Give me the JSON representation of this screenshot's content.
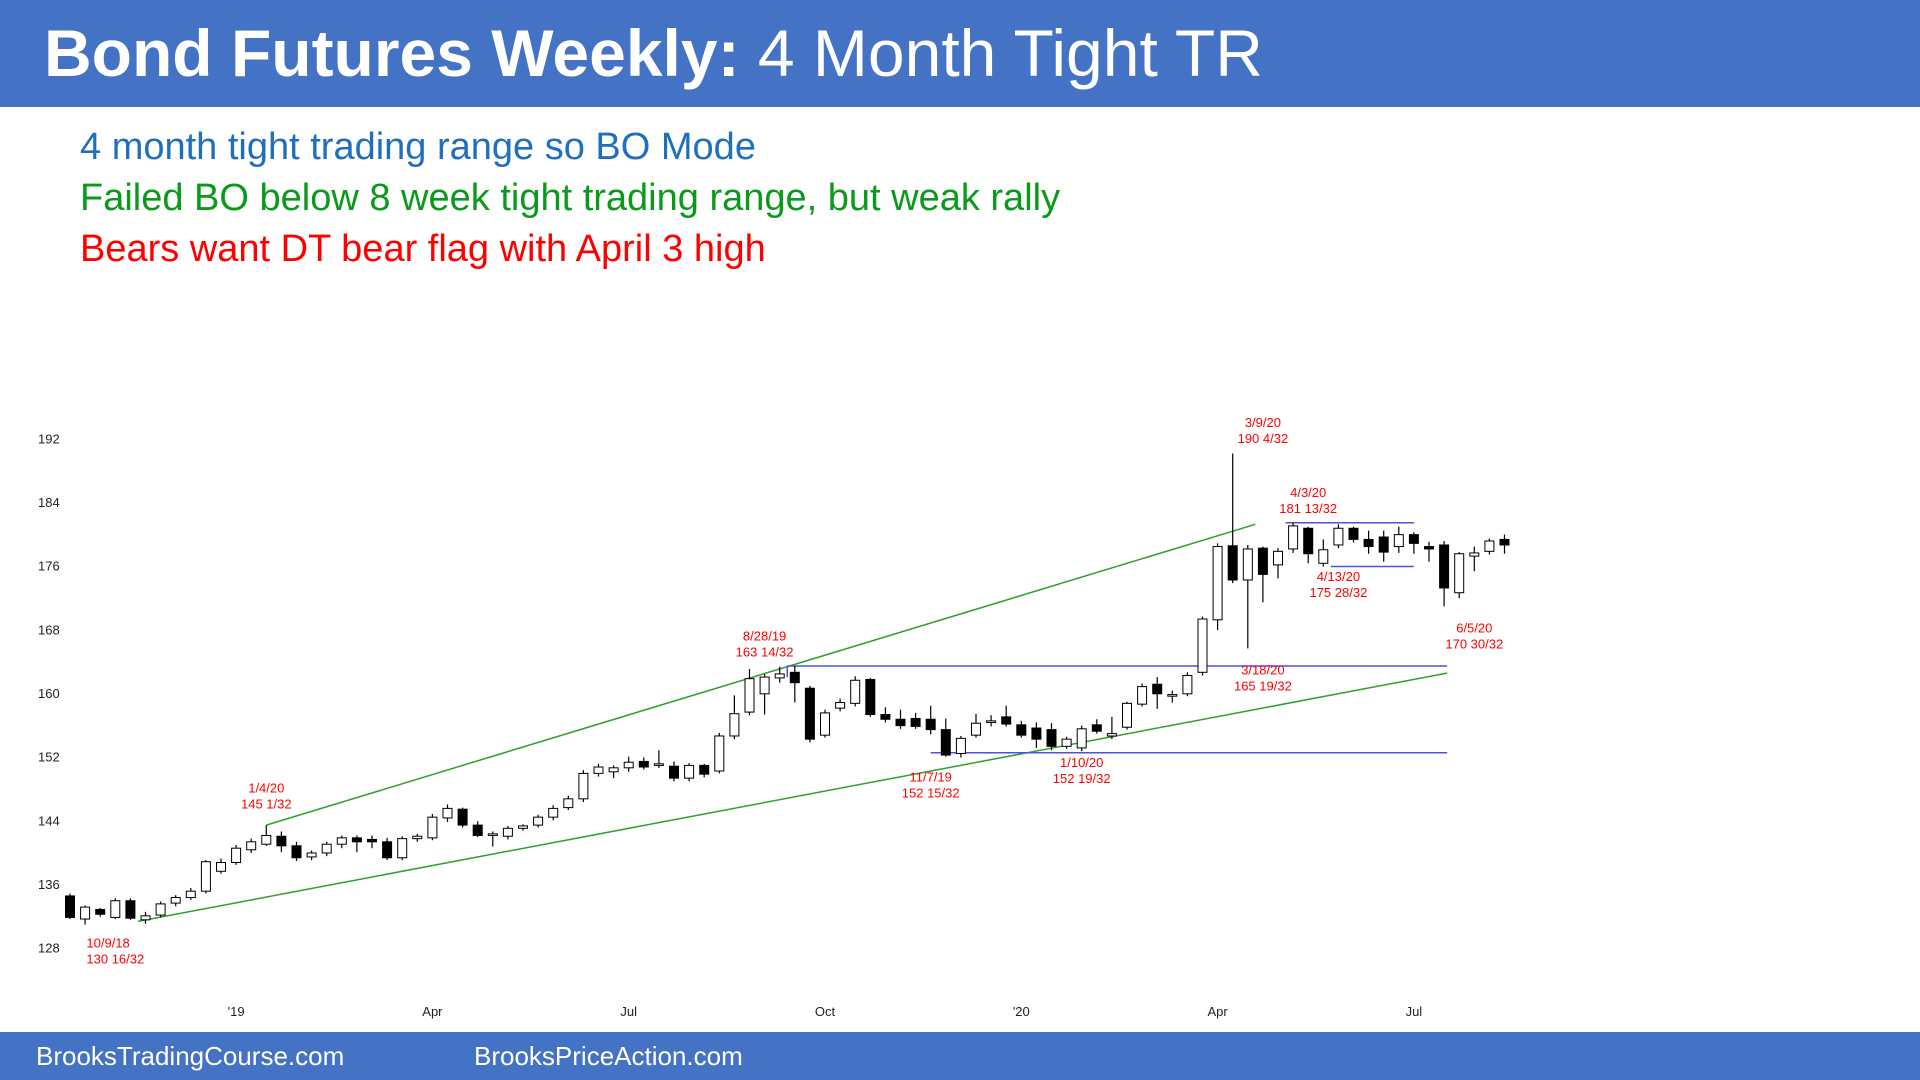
{
  "header": {
    "title_bold": "Bond Futures Weekly:",
    "title_rest": " 4 Month Tight TR",
    "bg_color": "#4472c4"
  },
  "bullets": [
    {
      "text": "4 month tight trading range so BO Mode",
      "color": "#1f6fbf"
    },
    {
      "text": "Failed BO below 8 week tight trading range, but weak rally",
      "color": "#0a9a1a"
    },
    {
      "text": "Bears want DT bear flag with April 3 high",
      "color": "#ff0000"
    }
  ],
  "footer": {
    "left": "BrooksTradingCourse.com",
    "right": "BrooksPriceAction.com"
  },
  "chart_data": {
    "type": "candlestick",
    "title": "",
    "x_axis_ticks": [
      {
        "label": "'19",
        "bar": 11
      },
      {
        "label": "Apr",
        "bar": 24
      },
      {
        "label": "Jul",
        "bar": 37
      },
      {
        "label": "Oct",
        "bar": 50
      },
      {
        "label": "'20",
        "bar": 63
      },
      {
        "label": "Apr",
        "bar": 76
      },
      {
        "label": "Jul",
        "bar": 89
      }
    ],
    "y_axis": {
      "ticks": [
        128,
        136,
        144,
        152,
        160,
        168,
        176,
        184,
        192
      ],
      "ylim": [
        126,
        196
      ]
    },
    "colors": {
      "up": "#ffffff",
      "down": "#000000",
      "annotation": "#ff0000",
      "trendline": "#2ea02e",
      "range_line": "#5050e0"
    },
    "bars": [
      {
        "o": 134.5,
        "h": 134.8,
        "c": 131.8,
        "l": 131.6
      },
      {
        "o": 131.6,
        "h": 133.3,
        "c": 133.1,
        "l": 130.9
      },
      {
        "o": 132.8,
        "h": 133.0,
        "c": 132.2,
        "l": 131.9
      },
      {
        "o": 131.8,
        "h": 134.2,
        "c": 133.9,
        "l": 131.6
      },
      {
        "o": 133.9,
        "h": 134.2,
        "c": 131.7,
        "l": 131.5
      },
      {
        "o": 131.5,
        "h": 132.5,
        "c": 132.0,
        "l": 131.0
      },
      {
        "o": 132.1,
        "h": 133.8,
        "c": 133.5,
        "l": 131.8
      },
      {
        "o": 133.6,
        "h": 134.6,
        "c": 134.3,
        "l": 133.2
      },
      {
        "o": 134.3,
        "h": 135.5,
        "c": 135.1,
        "l": 134.0
      },
      {
        "o": 135.1,
        "h": 139.0,
        "c": 138.8,
        "l": 134.8
      },
      {
        "o": 137.6,
        "h": 139.2,
        "c": 138.7,
        "l": 137.3
      },
      {
        "o": 138.7,
        "h": 140.9,
        "c": 140.5,
        "l": 138.4
      },
      {
        "o": 140.3,
        "h": 141.7,
        "c": 141.3,
        "l": 139.9
      },
      {
        "o": 141.0,
        "h": 143.4,
        "c": 142.1,
        "l": 140.8
      },
      {
        "o": 142.0,
        "h": 142.6,
        "c": 140.8,
        "l": 140.0
      },
      {
        "o": 140.8,
        "h": 141.3,
        "c": 139.3,
        "l": 138.9
      },
      {
        "o": 139.4,
        "h": 140.2,
        "c": 139.9,
        "l": 139.0
      },
      {
        "o": 139.9,
        "h": 141.3,
        "c": 141.0,
        "l": 139.5
      },
      {
        "o": 141.0,
        "h": 142.1,
        "c": 141.8,
        "l": 140.5
      },
      {
        "o": 141.8,
        "h": 142.1,
        "c": 141.3,
        "l": 140.0
      },
      {
        "o": 141.6,
        "h": 142.1,
        "c": 141.3,
        "l": 140.5
      },
      {
        "o": 141.3,
        "h": 141.8,
        "c": 139.3,
        "l": 139.0
      },
      {
        "o": 139.3,
        "h": 142.0,
        "c": 141.7,
        "l": 139.0
      },
      {
        "o": 141.7,
        "h": 142.3,
        "c": 142.0,
        "l": 141.3
      },
      {
        "o": 141.8,
        "h": 144.8,
        "c": 144.4,
        "l": 141.5
      },
      {
        "o": 144.3,
        "h": 146.0,
        "c": 145.5,
        "l": 143.8
      },
      {
        "o": 145.4,
        "h": 145.6,
        "c": 143.4,
        "l": 143.1
      },
      {
        "o": 143.4,
        "h": 143.9,
        "c": 142.1,
        "l": 141.9
      },
      {
        "o": 142.1,
        "h": 142.6,
        "c": 142.3,
        "l": 140.7
      },
      {
        "o": 142.0,
        "h": 143.3,
        "c": 143.0,
        "l": 141.6
      },
      {
        "o": 143.0,
        "h": 143.5,
        "c": 143.3,
        "l": 142.7
      },
      {
        "o": 143.4,
        "h": 144.7,
        "c": 144.4,
        "l": 143.1
      },
      {
        "o": 144.4,
        "h": 145.9,
        "c": 145.5,
        "l": 144.0
      },
      {
        "o": 145.6,
        "h": 147.1,
        "c": 146.7,
        "l": 145.3
      },
      {
        "o": 146.7,
        "h": 150.3,
        "c": 149.9,
        "l": 146.3
      },
      {
        "o": 149.9,
        "h": 151.1,
        "c": 150.7,
        "l": 149.5
      },
      {
        "o": 150.1,
        "h": 150.9,
        "c": 150.6,
        "l": 149.3
      },
      {
        "o": 150.6,
        "h": 152.0,
        "c": 151.3,
        "l": 150.1
      },
      {
        "o": 151.4,
        "h": 151.9,
        "c": 150.7,
        "l": 150.4
      },
      {
        "o": 150.9,
        "h": 152.8,
        "c": 151.1,
        "l": 150.6
      },
      {
        "o": 150.8,
        "h": 151.4,
        "c": 149.3,
        "l": 148.9
      },
      {
        "o": 149.3,
        "h": 151.2,
        "c": 150.9,
        "l": 148.9
      },
      {
        "o": 150.9,
        "h": 151.1,
        "c": 149.8,
        "l": 149.4
      },
      {
        "o": 150.2,
        "h": 155.0,
        "c": 154.6,
        "l": 149.9
      },
      {
        "o": 154.6,
        "h": 159.7,
        "c": 157.4,
        "l": 154.2
      },
      {
        "o": 157.6,
        "h": 163.0,
        "c": 161.8,
        "l": 157.2
      },
      {
        "o": 159.9,
        "h": 162.4,
        "c": 162.0,
        "l": 157.3
      },
      {
        "o": 161.9,
        "h": 163.3,
        "c": 162.4,
        "l": 161.3
      },
      {
        "o": 162.6,
        "h": 163.4,
        "c": 161.3,
        "l": 158.8
      },
      {
        "o": 160.6,
        "h": 160.9,
        "c": 154.2,
        "l": 153.8
      },
      {
        "o": 154.7,
        "h": 157.9,
        "c": 157.5,
        "l": 154.4
      },
      {
        "o": 158.1,
        "h": 159.3,
        "c": 158.8,
        "l": 157.7
      },
      {
        "o": 158.7,
        "h": 162.1,
        "c": 161.6,
        "l": 158.3
      },
      {
        "o": 161.7,
        "h": 161.9,
        "c": 157.3,
        "l": 157.0
      },
      {
        "o": 157.3,
        "h": 158.2,
        "c": 156.7,
        "l": 156.3
      },
      {
        "o": 156.7,
        "h": 157.9,
        "c": 155.9,
        "l": 155.5
      },
      {
        "o": 156.8,
        "h": 157.5,
        "c": 155.8,
        "l": 155.5
      },
      {
        "o": 156.7,
        "h": 158.4,
        "c": 155.4,
        "l": 154.8
      },
      {
        "o": 155.4,
        "h": 156.8,
        "c": 152.2,
        "l": 152.0
      },
      {
        "o": 152.4,
        "h": 154.6,
        "c": 154.3,
        "l": 151.9
      },
      {
        "o": 154.7,
        "h": 157.4,
        "c": 156.2,
        "l": 154.4
      },
      {
        "o": 156.3,
        "h": 157.2,
        "c": 156.5,
        "l": 155.8
      },
      {
        "o": 157.0,
        "h": 158.4,
        "c": 156.1,
        "l": 155.8
      },
      {
        "o": 156.0,
        "h": 156.5,
        "c": 154.7,
        "l": 154.4
      },
      {
        "o": 155.6,
        "h": 156.3,
        "c": 154.2,
        "l": 153.1
      },
      {
        "o": 155.4,
        "h": 156.2,
        "c": 153.3,
        "l": 152.8
      },
      {
        "o": 153.3,
        "h": 154.5,
        "c": 154.2,
        "l": 153.0
      },
      {
        "o": 153.1,
        "h": 155.9,
        "c": 155.5,
        "l": 152.7
      },
      {
        "o": 156.0,
        "h": 156.7,
        "c": 155.2,
        "l": 154.9
      },
      {
        "o": 154.6,
        "h": 157.0,
        "c": 154.9,
        "l": 154.2
      },
      {
        "o": 155.7,
        "h": 158.9,
        "c": 158.7,
        "l": 155.4
      },
      {
        "o": 158.6,
        "h": 161.2,
        "c": 160.8,
        "l": 158.3
      },
      {
        "o": 161.1,
        "h": 162.0,
        "c": 159.9,
        "l": 158.0
      },
      {
        "o": 159.6,
        "h": 160.3,
        "c": 159.8,
        "l": 158.8
      },
      {
        "o": 159.9,
        "h": 162.6,
        "c": 162.2,
        "l": 159.6
      },
      {
        "o": 162.6,
        "h": 169.6,
        "c": 169.3,
        "l": 162.2
      },
      {
        "o": 169.2,
        "h": 178.8,
        "c": 178.4,
        "l": 167.9
      },
      {
        "o": 178.5,
        "h": 190.1,
        "c": 174.2,
        "l": 173.8
      },
      {
        "o": 174.2,
        "h": 178.6,
        "c": 178.1,
        "l": 165.6
      },
      {
        "o": 178.2,
        "h": 178.4,
        "c": 174.9,
        "l": 171.4
      },
      {
        "o": 176.1,
        "h": 178.2,
        "c": 177.8,
        "l": 174.4
      },
      {
        "o": 178.1,
        "h": 181.4,
        "c": 181.0,
        "l": 177.6
      },
      {
        "o": 180.7,
        "h": 180.9,
        "c": 177.5,
        "l": 176.3
      },
      {
        "o": 176.3,
        "h": 179.3,
        "c": 178.0,
        "l": 175.9
      },
      {
        "o": 178.6,
        "h": 181.2,
        "c": 180.7,
        "l": 178.2
      },
      {
        "o": 180.7,
        "h": 180.9,
        "c": 179.3,
        "l": 178.9
      },
      {
        "o": 179.3,
        "h": 180.4,
        "c": 178.4,
        "l": 177.5
      },
      {
        "o": 179.6,
        "h": 180.4,
        "c": 177.7,
        "l": 176.5
      },
      {
        "o": 178.4,
        "h": 180.9,
        "c": 179.9,
        "l": 177.6
      },
      {
        "o": 179.9,
        "h": 180.2,
        "c": 178.8,
        "l": 177.5
      },
      {
        "o": 178.4,
        "h": 179.0,
        "c": 178.1,
        "l": 176.5
      },
      {
        "o": 178.6,
        "h": 179.1,
        "c": 173.2,
        "l": 170.9
      },
      {
        "o": 172.6,
        "h": 177.7,
        "c": 177.5,
        "l": 171.9
      },
      {
        "o": 177.2,
        "h": 178.4,
        "c": 177.6,
        "l": 175.3
      },
      {
        "o": 177.8,
        "h": 179.4,
        "c": 179.1,
        "l": 177.4
      },
      {
        "o": 179.3,
        "h": 179.9,
        "c": 178.6,
        "l": 177.5
      }
    ],
    "annotations": [
      {
        "bar": 4,
        "price": 128.0,
        "anchor": "start",
        "lines": [
          "10/9/18",
          "130 16/32"
        ]
      },
      {
        "bar": 13,
        "price": 147.5,
        "anchor": "middle",
        "lines": [
          "1/4/20",
          "145 1/32"
        ]
      },
      {
        "bar": 46,
        "price": 166.6,
        "anchor": "middle",
        "lines": [
          "8/28/19",
          "163 14/32"
        ]
      },
      {
        "bar": 57,
        "price": 148.9,
        "anchor": "middle",
        "lines": [
          "11/7/19",
          "152 15/32"
        ]
      },
      {
        "bar": 67,
        "price": 150.7,
        "anchor": "middle",
        "lines": [
          "1/10/20",
          "152 19/32"
        ]
      },
      {
        "bar": 79,
        "price": 193.4,
        "anchor": "middle",
        "lines": [
          "3/9/20",
          "190 4/32"
        ]
      },
      {
        "bar": 82,
        "price": 184.6,
        "anchor": "middle",
        "lines": [
          "4/3/20",
          "181 13/32"
        ]
      },
      {
        "bar": 79,
        "price": 162.3,
        "anchor": "middle",
        "lines": [
          "3/18/20",
          "165 19/32"
        ]
      },
      {
        "bar": 84,
        "price": 174.1,
        "anchor": "middle",
        "lines": [
          "4/13/20",
          "175 28/32"
        ]
      },
      {
        "bar": 93,
        "price": 167.6,
        "anchor": "middle",
        "lines": [
          "6/5/20",
          "170 30/32"
        ]
      }
    ],
    "lines": [
      {
        "kind": "trendline",
        "x1": 4.5,
        "y1": 131.3,
        "x2": 91.2,
        "y2": 162.5
      },
      {
        "kind": "trendline",
        "x1": 13,
        "y1": 143.4,
        "x2": 78.5,
        "y2": 181.2
      },
      {
        "kind": "range_line",
        "x1": 47.5,
        "y1": 163.4,
        "x2": 91.2,
        "y2": 163.4
      },
      {
        "kind": "range_line",
        "x1": 47.5,
        "y1": 162.0,
        "x2": 47.5,
        "y2": 163.4
      },
      {
        "kind": "range_line",
        "x1": 57,
        "y1": 152.5,
        "x2": 91.2,
        "y2": 152.5
      },
      {
        "kind": "range_line",
        "x1": 80.5,
        "y1": 181.4,
        "x2": 89,
        "y2": 181.4
      },
      {
        "kind": "range_line",
        "x1": 83.5,
        "y1": 175.9,
        "x2": 89,
        "y2": 175.9
      }
    ]
  }
}
